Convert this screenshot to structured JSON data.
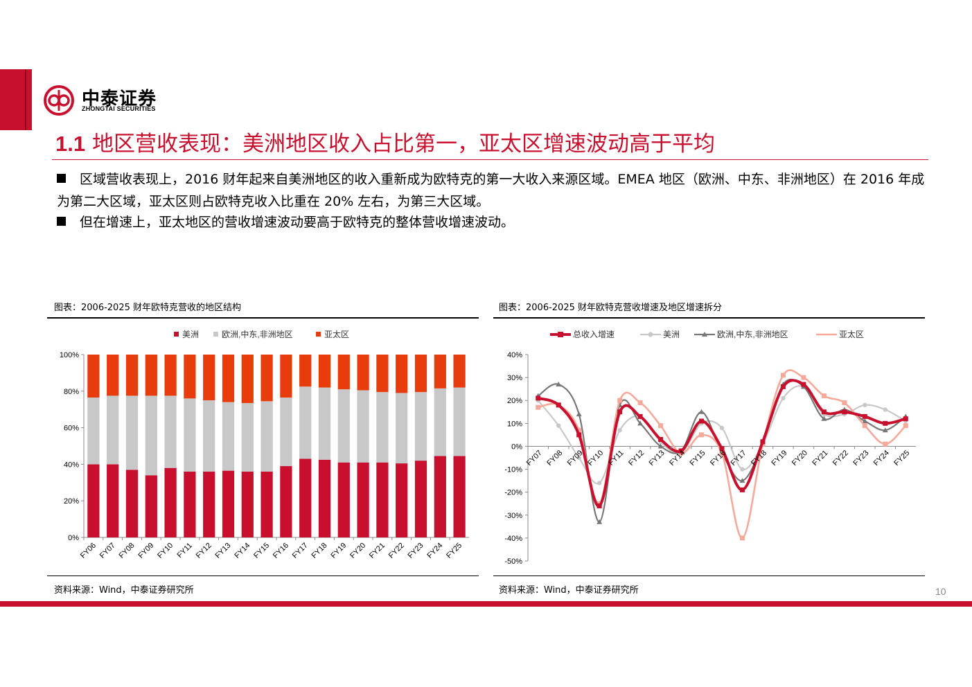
{
  "header": {
    "brand": "中泰证券",
    "brand_en": "ZHONGTAI SECURITIES",
    "section_num": "1.1",
    "title": "地区营收表现：美洲地区收入占比第一，亚太区增速波动高于平均"
  },
  "bullets": [
    "区域营收表现上，2016 财年起来自美洲地区的收入重新成为欧特克的第一大收入来源区域。EMEA 地区（欧洲、中东、非洲地区）在 2016 年成为第二大区域，亚太区则占欧特克收入比重在 20% 左右，为第三大区域。",
    "但在增速上，亚太地区的营收增速波动要高于欧特克的整体营收增速波动。"
  ],
  "page_number": "10",
  "colors": {
    "brand_red": "#c8102e",
    "americas": "#c8102e",
    "emea": "#c8c8c8",
    "apac": "#e83c0c",
    "growth_total": "#c8102e",
    "growth_americas": "#c8c8c8",
    "growth_emea": "#777777",
    "growth_apac": "#f6a99a"
  },
  "charts": [
    {
      "caption": "图表：2006-2025 财年欧特克营收的地区结构",
      "source": "资料来源：Wind，中泰证券研究所"
    },
    {
      "caption": "图表：2006-2025 财年欧特克营收增速及地区增速拆分",
      "source": "资料来源：Wind，中泰证券研究所"
    }
  ],
  "chart_data": [
    {
      "type": "bar",
      "stacked": true,
      "title": "",
      "categories": [
        "FY06",
        "FY07",
        "FY08",
        "FY09",
        "FY10",
        "FY11",
        "FY12",
        "FY13",
        "FY14",
        "FY15",
        "FY16",
        "FY17",
        "FY18",
        "FY19",
        "FY20",
        "FY21",
        "FY22",
        "FY23",
        "FY24",
        "FY25"
      ],
      "series": [
        {
          "name": "美洲",
          "values": [
            40,
            40,
            37,
            34,
            38,
            36,
            36,
            36.5,
            36,
            36,
            39,
            43,
            42.5,
            41,
            41,
            41,
            40.5,
            42,
            44.5,
            44.5
          ]
        },
        {
          "name": "欧洲,中东,非洲地区",
          "values": [
            36.5,
            37.5,
            40.5,
            43.5,
            39.5,
            40,
            39,
            37.5,
            37.5,
            38.5,
            37.5,
            39.5,
            39.5,
            40,
            39.5,
            38.5,
            38.5,
            37.5,
            37,
            37.5
          ]
        },
        {
          "name": "亚太区",
          "values": [
            23.5,
            22.5,
            22.5,
            22.5,
            22.5,
            24,
            25,
            26,
            26.5,
            25.5,
            23.5,
            17.5,
            18,
            19,
            19.5,
            20.5,
            21,
            20.5,
            18.5,
            18
          ]
        }
      ],
      "yticks": [
        "0%",
        "20%",
        "40%",
        "60%",
        "80%",
        "100%"
      ],
      "ylim": [
        0,
        100
      ],
      "legend": "top-center",
      "grid": false
    },
    {
      "type": "line",
      "title": "",
      "categories": [
        "FY07",
        "FY08",
        "FY09",
        "FY10",
        "FY11",
        "FY12",
        "FY13",
        "FY14",
        "FY15",
        "FY16",
        "FY17",
        "FY18",
        "FY19",
        "FY20",
        "FY21",
        "FY22",
        "FY23",
        "FY24",
        "FY25"
      ],
      "series": [
        {
          "name": "总收入增速",
          "values": [
            21,
            18,
            5,
            -26,
            15,
            13,
            3,
            -2,
            11,
            -1,
            -19,
            2,
            26,
            27,
            15,
            15,
            13,
            10,
            12
          ]
        },
        {
          "name": "美洲",
          "values": [
            20,
            9,
            -5,
            -16,
            7,
            13,
            2,
            -3,
            10,
            8,
            -10,
            1,
            21,
            26,
            14,
            14,
            18,
            16,
            11
          ]
        },
        {
          "name": "欧洲,中东,非洲地区",
          "values": [
            22,
            27,
            14,
            -33,
            18,
            10,
            0,
            -2,
            15,
            -3,
            -15,
            1,
            27,
            26,
            12,
            16,
            11,
            7,
            13
          ]
        },
        {
          "name": "亚太区",
          "values": [
            17,
            18,
            7,
            -25,
            20,
            19,
            9,
            -3,
            5,
            -3,
            -40,
            1,
            31,
            30,
            22,
            19,
            9,
            1,
            9
          ]
        }
      ],
      "yticks": [
        "-50%",
        "-40%",
        "-30%",
        "-20%",
        "-10%",
        "0%",
        "10%",
        "20%",
        "30%",
        "40%"
      ],
      "ylim": [
        -50,
        40
      ],
      "legend": "top-center",
      "grid": false
    }
  ]
}
